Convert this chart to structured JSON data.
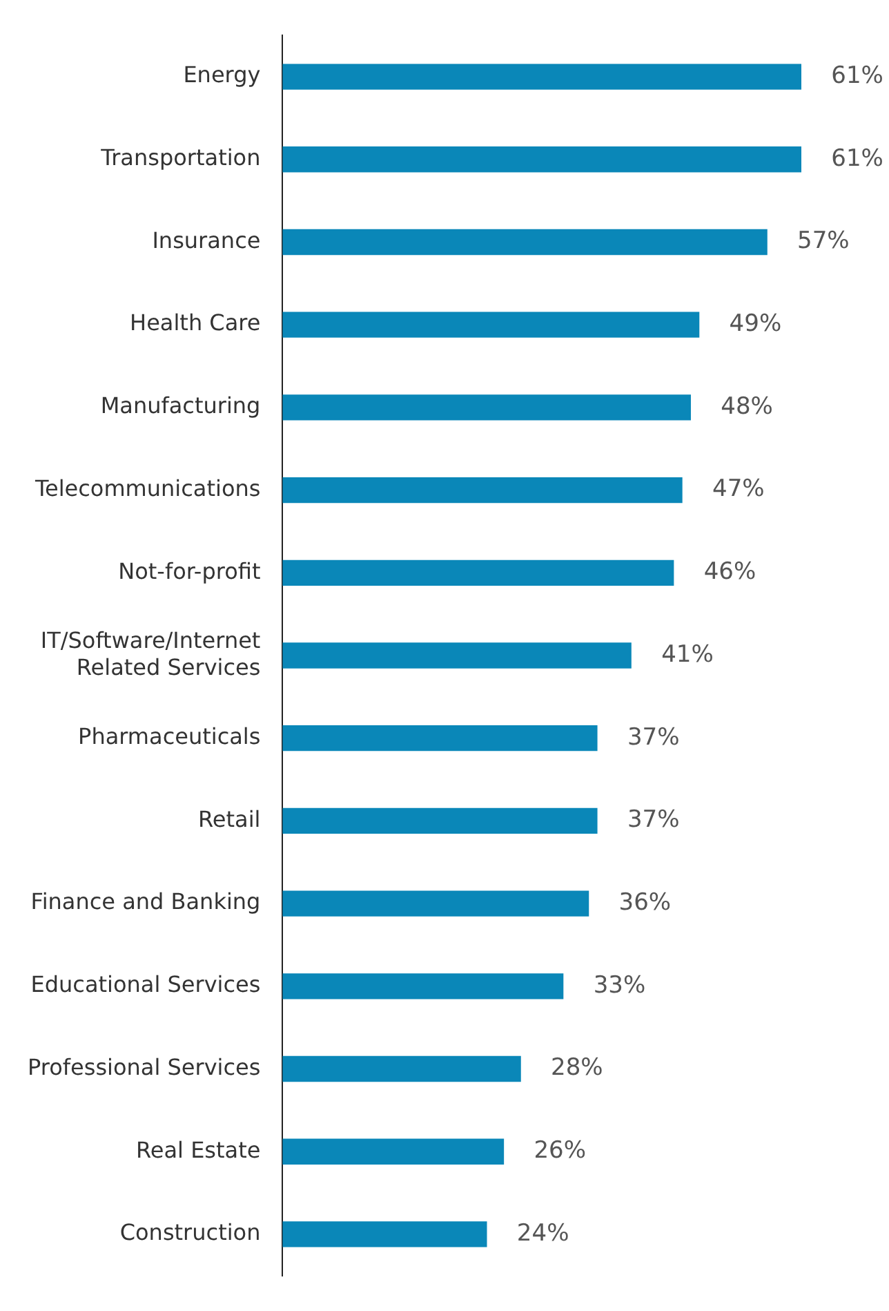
{
  "chart_data": {
    "type": "bar",
    "orientation": "horizontal",
    "categories": [
      "Energy",
      "Transportation",
      "Insurance",
      "Health Care",
      "Manufacturing",
      "Telecommunications",
      "Not-for-profit",
      "IT/Software/Internet\nRelated Services",
      "Pharmaceuticals",
      "Retail",
      "Finance and Banking",
      "Educational Services",
      "Professional Services",
      "Real Estate",
      "Construction"
    ],
    "values": [
      61,
      61,
      57,
      49,
      48,
      47,
      46,
      41,
      37,
      37,
      36,
      33,
      28,
      26,
      24
    ],
    "value_labels": [
      "61%",
      "61%",
      "57%",
      "49%",
      "48%",
      "47%",
      "46%",
      "41%",
      "37%",
      "37%",
      "36%",
      "33%",
      "28%",
      "26%",
      "24%"
    ],
    "color": "#0a87b8",
    "legend": false
  }
}
